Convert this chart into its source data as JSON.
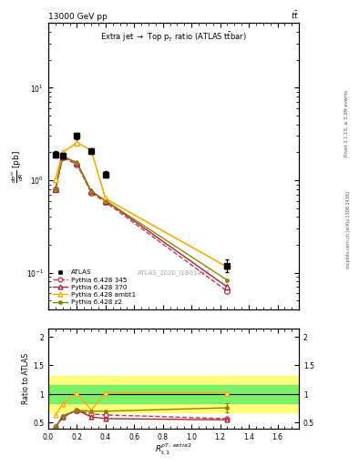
{
  "title_top": "13000 GeV pp",
  "title_right": "tt",
  "watermark": "ATLAS_2020_I1801434",
  "rivet_text": "Rivet 3.1.10, ≥ 3.3M events",
  "arxiv_text": "mcplots.cern.ch [arXiv:1306.3436]",
  "x_atlas": [
    0.05,
    0.1,
    0.2,
    0.3,
    0.4,
    1.25
  ],
  "y_atlas": [
    1.9,
    1.85,
    3.0,
    2.05,
    1.15,
    0.12
  ],
  "y_atlas_err_lo": [
    0.15,
    0.12,
    0.22,
    0.14,
    0.09,
    0.018
  ],
  "y_atlas_err_hi": [
    0.15,
    0.12,
    0.22,
    0.14,
    0.09,
    0.018
  ],
  "x_345": [
    0.05,
    0.1,
    0.2,
    0.3,
    0.4,
    1.25
  ],
  "y_345": [
    0.8,
    1.75,
    1.48,
    0.73,
    0.58,
    0.063
  ],
  "x_370": [
    0.05,
    0.1,
    0.2,
    0.3,
    0.4,
    1.25
  ],
  "y_370": [
    0.8,
    1.8,
    1.55,
    0.76,
    0.6,
    0.07
  ],
  "x_ambt1": [
    0.05,
    0.1,
    0.2,
    0.3,
    0.4,
    1.25
  ],
  "y_ambt1": [
    1.02,
    2.0,
    2.55,
    2.1,
    0.63,
    0.115
  ],
  "x_z2": [
    0.05,
    0.1,
    0.2,
    0.3,
    0.4,
    1.25
  ],
  "y_z2": [
    0.8,
    1.82,
    1.52,
    0.75,
    0.6,
    0.083
  ],
  "ratio_345": [
    0.42,
    0.595,
    0.72,
    0.65,
    0.635,
    0.57
  ],
  "ratio_370": [
    0.42,
    0.6,
    0.72,
    0.6,
    0.57,
    0.55
  ],
  "ratio_ambt1": [
    0.63,
    0.82,
    1.02,
    0.72,
    1.02,
    1.02
  ],
  "ratio_z2": [
    0.42,
    0.62,
    0.72,
    0.7,
    0.7,
    0.76
  ],
  "ratio_z2_err": [
    0.0,
    0.0,
    0.0,
    0.0,
    0.0,
    0.08
  ],
  "color_atlas": "#000000",
  "color_345": "#cc3355",
  "color_370": "#aa2233",
  "color_ambt1": "#ffaa00",
  "color_z2": "#888800",
  "xlim": [
    0.0,
    1.75
  ],
  "ylim_main": [
    0.04,
    50.0
  ],
  "ylim_ratio": [
    0.4,
    2.15
  ],
  "yticks_ratio": [
    0.5,
    1.0,
    1.5,
    2.0
  ]
}
